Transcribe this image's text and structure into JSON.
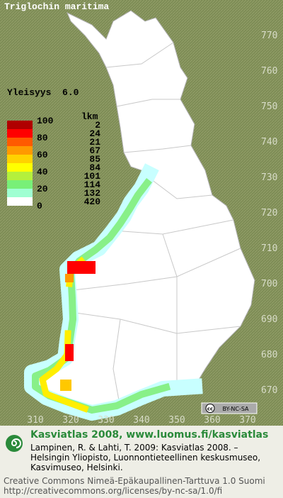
{
  "title": "Triglochin maritima",
  "frequency_label": "Yleisyys  6.0",
  "legend": {
    "scale_labels": [
      "100",
      "80",
      "60",
      "40",
      "20",
      "0"
    ],
    "count_header": "lkm",
    "classes": [
      {
        "color": "#b00000",
        "count": "2"
      },
      {
        "color": "#ff0000",
        "count": "24"
      },
      {
        "color": "#ff5a00",
        "count": "21"
      },
      {
        "color": "#ff9900",
        "count": "67"
      },
      {
        "color": "#ffd200",
        "count": "85"
      },
      {
        "color": "#ffff00",
        "count": "84"
      },
      {
        "color": "#b4f03c",
        "count": "101"
      },
      {
        "color": "#78f078",
        "count": "114"
      },
      {
        "color": "#a0ffd2",
        "count": "132"
      },
      {
        "color": "#ffffff",
        "count": "420"
      }
    ]
  },
  "map": {
    "northing_labels": [
      "770",
      "760",
      "750",
      "740",
      "730",
      "720",
      "710",
      "700",
      "690",
      "680",
      "670"
    ],
    "easting_labels": [
      "310",
      "320",
      "330",
      "340",
      "350",
      "360",
      "370"
    ],
    "license_badge": "BY-NC-SA"
  },
  "footer": {
    "heading": "Kasviatlas 2008, www.luomus.fi/kasviatlas",
    "citation": [
      "Lampinen, R. & Lahti, T. 2009: Kasviatlas 2008. –",
      "Helsingin Yliopisto, Luonnontieteellinen keskusmuseo,",
      "Kasvimuseo, Helsinki."
    ],
    "license": [
      "Creative Commons Nimeä-Epäkaupallinen-Tarttuva 1.0 Suomi",
      "http://creativecommons.org/licenses/by-nc-sa/1.0/fi"
    ]
  }
}
